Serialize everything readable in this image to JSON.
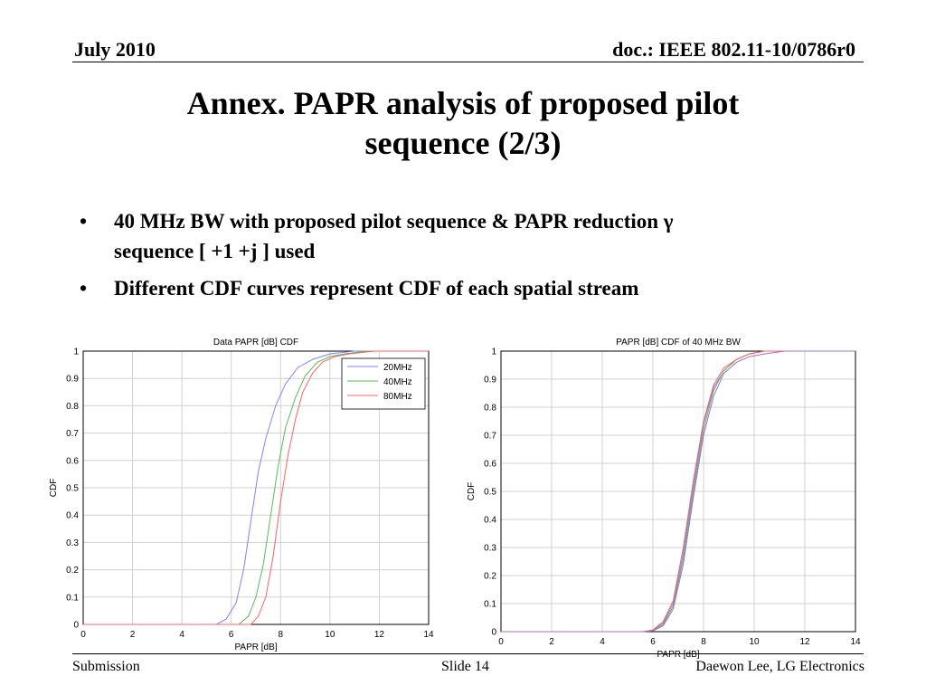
{
  "header": {
    "date": "July 2010",
    "doc_id": "doc.: IEEE 802.11-10/0786r0"
  },
  "title": {
    "line1": "Annex. PAPR analysis of proposed pilot",
    "line2": "sequence (2/3)"
  },
  "bullets": [
    {
      "marker": "•",
      "line1": "40 MHz BW with proposed pilot sequence & PAPR reduction γ",
      "line2": "sequence [ +1 +j ] used"
    },
    {
      "marker": "•",
      "line1": "Different CDF curves represent CDF of each spatial stream",
      "line2": ""
    }
  ],
  "footer": {
    "left": "Submission",
    "center": "Slide 14",
    "right": "Daewon Lee, LG Electronics"
  },
  "colors": {
    "grid": "#d0d0d0",
    "series_blue": "#8080ff",
    "series_green": "#5cb85c",
    "series_red": "#ff6060",
    "series_purple": "#a070c0"
  },
  "chart_data": [
    {
      "type": "line",
      "title": "Data PAPR [dB] CDF",
      "xlabel": "PAPR [dB]",
      "ylabel": "CDF",
      "xlim": [
        0,
        14
      ],
      "ylim": [
        0,
        1
      ],
      "xticks": [
        "0",
        "2",
        "4",
        "6",
        "8",
        "10",
        "12",
        "14"
      ],
      "yticks": [
        "0",
        "0.1",
        "0.2",
        "0.3",
        "0.4",
        "0.5",
        "0.6",
        "0.7",
        "0.8",
        "0.9",
        "1"
      ],
      "grid": true,
      "legend_position": "top-right",
      "series": [
        {
          "name": "20MHz",
          "color": "#8080ff",
          "x": [
            0,
            5.4,
            5.8,
            6.2,
            6.5,
            6.8,
            7.1,
            7.4,
            7.8,
            8.2,
            8.7,
            9.3,
            10.0,
            11.0,
            14.0
          ],
          "y": [
            0,
            0.0,
            0.02,
            0.08,
            0.2,
            0.38,
            0.56,
            0.68,
            0.8,
            0.88,
            0.94,
            0.97,
            0.99,
            1.0,
            1.0
          ]
        },
        {
          "name": "40MHz",
          "color": "#5cb85c",
          "x": [
            0,
            6.3,
            6.7,
            7.0,
            7.3,
            7.6,
            7.9,
            8.2,
            8.6,
            9.0,
            9.5,
            10.0,
            10.6,
            11.5,
            14.0
          ],
          "y": [
            0,
            0.0,
            0.03,
            0.1,
            0.22,
            0.4,
            0.58,
            0.72,
            0.83,
            0.91,
            0.96,
            0.98,
            0.99,
            1.0,
            1.0
          ]
        },
        {
          "name": "80MHz",
          "color": "#ff6060",
          "x": [
            0,
            6.8,
            7.1,
            7.4,
            7.7,
            8.0,
            8.3,
            8.6,
            8.9,
            9.3,
            9.7,
            10.2,
            10.8,
            11.8,
            14.0
          ],
          "y": [
            0,
            0.0,
            0.03,
            0.1,
            0.25,
            0.45,
            0.62,
            0.75,
            0.85,
            0.92,
            0.96,
            0.98,
            0.99,
            1.0,
            1.0
          ]
        }
      ]
    },
    {
      "type": "line",
      "title": "PAPR [dB] CDF of 40 MHz BW",
      "xlabel": "PAPR [dB]",
      "ylabel": "CDF",
      "xlim": [
        0,
        14
      ],
      "ylim": [
        0,
        1
      ],
      "xticks": [
        "0",
        "2",
        "4",
        "6",
        "8",
        "10",
        "12",
        "14"
      ],
      "yticks": [
        "0",
        "0.1",
        "0.2",
        "0.3",
        "0.4",
        "0.5",
        "0.6",
        "0.7",
        "0.8",
        "0.9",
        "1"
      ],
      "grid": true,
      "series": [
        {
          "color": "#8080ff",
          "x": [
            0,
            5.6,
            6.0,
            6.4,
            6.8,
            7.2,
            7.6,
            8.0,
            8.4,
            8.8,
            9.3,
            9.8,
            10.4,
            11.2,
            14.0
          ],
          "y": [
            0,
            0.0,
            0.005,
            0.03,
            0.1,
            0.28,
            0.52,
            0.74,
            0.87,
            0.93,
            0.97,
            0.99,
            1.0,
            1.0,
            1.0
          ]
        },
        {
          "color": "#5cb85c",
          "x": [
            0,
            5.6,
            6.0,
            6.4,
            6.8,
            7.2,
            7.6,
            8.0,
            8.4,
            8.8,
            9.3,
            9.8,
            10.4,
            11.2,
            14.0
          ],
          "y": [
            0,
            0.0,
            0.004,
            0.025,
            0.09,
            0.26,
            0.5,
            0.72,
            0.86,
            0.93,
            0.97,
            0.99,
            1.0,
            1.0,
            1.0
          ]
        },
        {
          "color": "#ff6060",
          "x": [
            0,
            5.6,
            6.0,
            6.4,
            6.8,
            7.2,
            7.6,
            8.0,
            8.4,
            8.8,
            9.3,
            9.8,
            10.4,
            11.2,
            14.0
          ],
          "y": [
            0,
            0.0,
            0.006,
            0.035,
            0.11,
            0.3,
            0.54,
            0.75,
            0.88,
            0.94,
            0.97,
            0.99,
            1.0,
            1.0,
            1.0
          ]
        },
        {
          "color": "#a070c0",
          "x": [
            0,
            5.6,
            6.0,
            6.4,
            6.8,
            7.2,
            7.6,
            8.0,
            8.4,
            8.8,
            9.3,
            9.8,
            10.4,
            11.2,
            14.0
          ],
          "y": [
            0,
            0.0,
            0.003,
            0.02,
            0.08,
            0.24,
            0.48,
            0.7,
            0.84,
            0.92,
            0.96,
            0.98,
            0.99,
            1.0,
            1.0
          ]
        }
      ]
    }
  ]
}
